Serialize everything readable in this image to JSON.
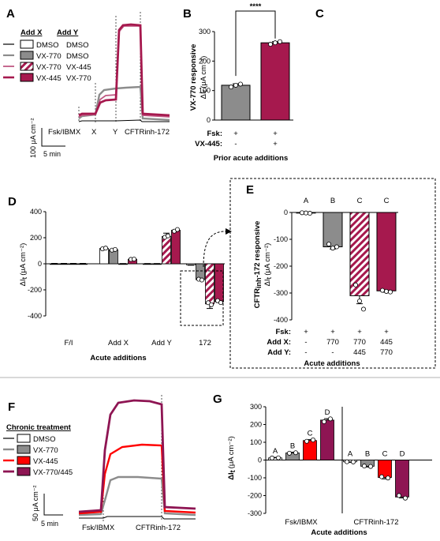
{
  "colors": {
    "dmso": "#000000",
    "vx770": "#8c8c8c",
    "vx445_magenta": "#a6194e",
    "vx445_red": "#ff0000",
    "combo": "#8e1553",
    "dash_line": "#555555"
  },
  "panel_letters": [
    "A",
    "B",
    "C",
    "D",
    "E",
    "F",
    "G"
  ],
  "panel_a": {
    "legend_header_x": "Add  X",
    "legend_header_y": "Add  Y",
    "legend": [
      {
        "x": "DMSO",
        "y": "DMSO",
        "style": "black-line-white-box"
      },
      {
        "x": "VX-770",
        "y": "DMSO",
        "style": "gray"
      },
      {
        "x": "VX-770",
        "y": "VX-445",
        "style": "hatched"
      },
      {
        "x": "VX-445",
        "y": "VX-770",
        "style": "magenta"
      }
    ],
    "additions": [
      "Fsk/IBMX",
      "X",
      "Y",
      "CFTRinh-172"
    ],
    "scale_y": "100 μA cm⁻²",
    "scale_x": "5 min"
  },
  "chart_data": [
    {
      "panel": "B",
      "type": "bar",
      "ylabel_main": "VX-770 responsive",
      "ylabel_sub": "ΔI",
      "ylabel_sub_idx": "t",
      "ylabel_units": "(μA cm⁻²)",
      "yticks": [
        0,
        100,
        200,
        300
      ],
      "ylim": [
        0,
        300
      ],
      "row_labels": [
        "Fsk:",
        "VX-445:"
      ],
      "categories": [
        [
          "+",
          "-"
        ],
        [
          "+",
          "+"
        ]
      ],
      "values": [
        118,
        262
      ],
      "errors": [
        5,
        4
      ],
      "points": [
        [
          112,
          118,
          122
        ],
        [
          257,
          262,
          266
        ]
      ],
      "significance": "****",
      "xlabel": "Prior acute additions"
    },
    {
      "panel": "D",
      "type": "bar",
      "ylabel": "ΔI",
      "ylabel_idx": "t",
      "ylabel_units": "(μA cm⁻²)",
      "yticks": [
        -400,
        -200,
        0,
        200,
        400
      ],
      "ylim": [
        -400,
        400
      ],
      "categories": [
        "F/I",
        "Add X",
        "Add Y",
        "172"
      ],
      "xlabel": "Acute additions",
      "series_order": [
        "dmso",
        "vx770",
        "vx770_445",
        "vx445_770"
      ],
      "values": [
        [
          0,
          0,
          0,
          0
        ],
        [
          118,
          108,
          0,
          35
        ],
        [
          0,
          0,
          210,
          258
        ],
        [
          -8,
          -122,
          -308,
          -292
        ]
      ],
      "errors": [
        [
          3,
          3,
          3,
          3
        ],
        [
          8,
          6,
          2,
          3
        ],
        [
          2,
          2,
          25,
          5
        ],
        [
          3,
          8,
          35,
          5
        ]
      ]
    },
    {
      "panel": "E",
      "type": "bar",
      "ylabel_main": "CFTR",
      "ylabel_main_idx": "inh",
      "ylabel_main_rest": "-172 responsive",
      "ylabel_sub": "ΔI",
      "ylabel_sub_idx": "t",
      "ylabel_units": "(μA cm⁻²)",
      "yticks": [
        0,
        -100,
        -200,
        -300,
        -400
      ],
      "ylim": [
        -400,
        0
      ],
      "row_labels": [
        "Fsk:",
        "Add X:",
        "Add Y:"
      ],
      "categories": [
        [
          "+",
          "-",
          "-"
        ],
        [
          "+",
          "770",
          "-"
        ],
        [
          "+",
          "770",
          "445"
        ],
        [
          "+",
          "445",
          "770"
        ]
      ],
      "values": [
        -2,
        -128,
        -310,
        -292
      ],
      "errors": [
        2,
        8,
        30,
        5
      ],
      "points": [
        [
          -1,
          -2,
          -3
        ],
        [
          -118,
          -133,
          -128
        ],
        [
          -270,
          -330,
          -360
        ],
        [
          -290,
          -294,
          -296
        ]
      ],
      "letters": [
        "A",
        "B",
        "C",
        "C"
      ],
      "xlabel": "Acute additions"
    },
    {
      "panel": "G",
      "type": "bar",
      "ylabel": "ΔI",
      "ylabel_idx": "t",
      "ylabel_units": "(μA cm⁻²)",
      "yticks": [
        300,
        200,
        100,
        0,
        -100,
        -200,
        -300
      ],
      "ylim": [
        -300,
        300
      ],
      "categories": [
        "Fsk/IBMX",
        "CFTRinh-172"
      ],
      "xlabel": "Acute additions",
      "series_order": [
        "dmso",
        "vx770",
        "vx445",
        "vx770_445"
      ],
      "values": [
        [
          12,
          40,
          110,
          225
        ],
        [
          -10,
          -35,
          -98,
          -208
        ]
      ],
      "errors": [
        [
          3,
          4,
          5,
          8
        ],
        [
          3,
          4,
          8,
          5
        ]
      ],
      "letters": [
        [
          "A",
          "B",
          "C",
          "D"
        ],
        [
          "A",
          "B",
          "C",
          "D"
        ]
      ]
    }
  ],
  "panel_f": {
    "legend_title": "Chronic treatment",
    "legend": [
      "DMSO",
      "VX-770",
      "VX-445",
      "VX-770/445"
    ],
    "additions": [
      "Fsk/IBMX",
      "CFTRinh-172"
    ],
    "scale_y": "50 μA cm⁻²",
    "scale_x": "5 min"
  }
}
